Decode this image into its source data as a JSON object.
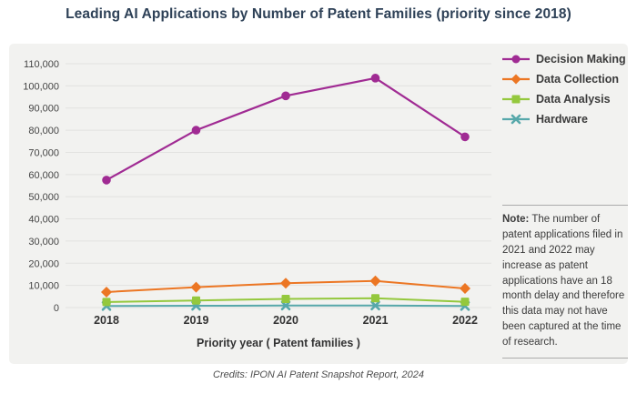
{
  "title": "Leading AI Applications by Number of Patent Families (priority since 2018)",
  "credits": "Credits: IPON AI Patent Snapshot Report, 2024",
  "note": {
    "label": "Note:",
    "text": " The number of patent applications filed in 2021 and 2022 may increase as patent applications have an 18 month delay and therefore this data may not have been captured at the time of research."
  },
  "colors": {
    "title": "#2e4157",
    "panel_background": "#f2f2f0",
    "gridline": "#e2e2e0",
    "axis_text": "#454545",
    "decision_making": "#a02b93",
    "data_collection": "#ec7623",
    "data_analysis": "#94c83d",
    "hardware": "#57a8aa"
  },
  "chart_data": {
    "type": "line",
    "x": [
      "2018",
      "2019",
      "2020",
      "2021",
      "2022"
    ],
    "xlabel": "Priority year ( Patent families )",
    "ylabel": "",
    "ylim": [
      0,
      110000
    ],
    "ytick_step": 10000,
    "grid": true,
    "legend_position": "top-right",
    "series": [
      {
        "name": "Decision Making",
        "color": "#a02b93",
        "marker": "circle",
        "values": [
          57500,
          80000,
          95500,
          103500,
          77000
        ]
      },
      {
        "name": "Data Collection",
        "color": "#ec7623",
        "marker": "diamond",
        "values": [
          7000,
          9200,
          11000,
          12000,
          8600
        ]
      },
      {
        "name": "Data Analysis",
        "color": "#94c83d",
        "marker": "square",
        "values": [
          2500,
          3200,
          3900,
          4200,
          2600
        ]
      },
      {
        "name": "Hardware",
        "color": "#57a8aa",
        "marker": "x",
        "values": [
          700,
          800,
          900,
          900,
          700
        ]
      }
    ]
  }
}
